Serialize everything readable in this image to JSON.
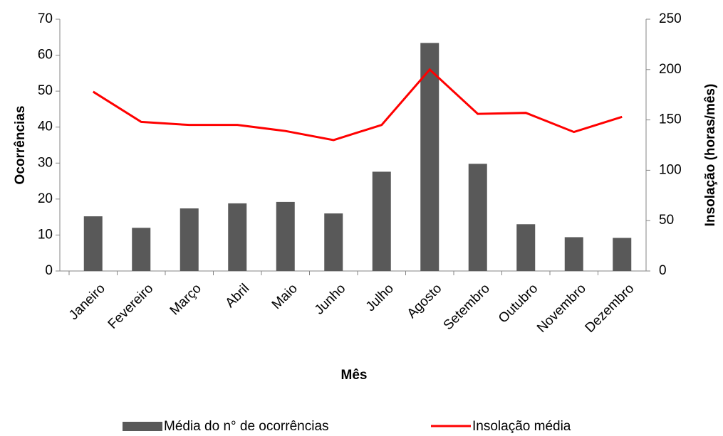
{
  "chart_data": {
    "type": "bar_line",
    "categories": [
      "Janeiro",
      "Fevereiro",
      "Março",
      "Abril",
      "Maio",
      "Junho",
      "Julho",
      "Agosto",
      "Setembro",
      "Outubro",
      "Novembro",
      "Dezembro"
    ],
    "series": [
      {
        "name": "Média do n° de ocorrências",
        "type": "bar",
        "color": "#595959",
        "values": [
          15.2,
          12,
          17.4,
          18.8,
          19.2,
          16,
          27.6,
          63.4,
          29.8,
          13,
          9.4,
          9.2
        ]
      },
      {
        "name": "Insolação média",
        "type": "line",
        "color": "#ff0000",
        "axis": "y2",
        "values": [
          178,
          148,
          145,
          145,
          139,
          130,
          145,
          200,
          156,
          157,
          138,
          153
        ]
      }
    ],
    "xlabel": "Mês",
    "ylabel": "Ocorrências",
    "y2label": "Insolação (horas/mês)",
    "ylim": [
      0,
      70
    ],
    "yticks": [
      0,
      10,
      20,
      30,
      40,
      50,
      60,
      70
    ],
    "y2lim": [
      0,
      250
    ],
    "y2ticks": [
      0,
      50,
      100,
      150,
      200,
      250
    ],
    "grid": false,
    "legend": "bottom"
  }
}
